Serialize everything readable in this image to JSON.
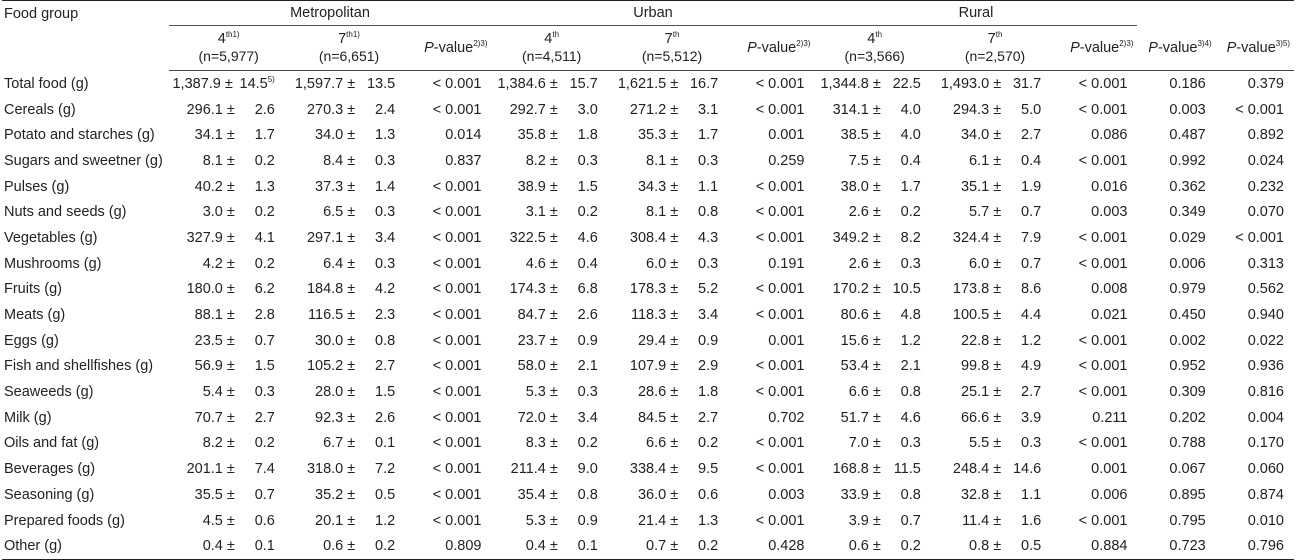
{
  "header": {
    "food_group": "Food group",
    "groups": [
      "Metropolitan",
      "Urban",
      "Rural"
    ],
    "sub": [
      {
        "grade": "4",
        "sup": "th1)",
        "n": "(n=5,977)"
      },
      {
        "grade": "7",
        "sup": "th1)",
        "n": "(n=6,651)"
      },
      {
        "grade": "4",
        "sup": "th",
        "n": "(n=4,511)"
      },
      {
        "grade": "7",
        "sup": "th",
        "n": "(n=5,512)"
      },
      {
        "grade": "4",
        "sup": "th",
        "n": "(n=3,566)"
      },
      {
        "grade": "7",
        "sup": "th",
        "n": "(n=2,570)"
      }
    ],
    "p_prefix": "P",
    "p_suffix": "-value",
    "p_sups": [
      "2)3)",
      "2)3)",
      "2)3)",
      "3)4)",
      "3)5)"
    ],
    "mean_sup": "5)"
  },
  "rows": [
    {
      "food": "Total food (g)",
      "m4": [
        "1,387.9 ±",
        "14.5"
      ],
      "m7": [
        "1,597.7 ±",
        "13.5"
      ],
      "mp": "< 0.001",
      "u4": [
        "1,384.6 ±",
        "15.7"
      ],
      "u7": [
        "1,621.5 ±",
        "16.7"
      ],
      "up": "< 0.001",
      "r4": [
        "1,344.8 ±",
        "22.5"
      ],
      "r7": [
        "1,493.0 ±",
        "31.7"
      ],
      "rp": "< 0.001",
      "p4": "0.186",
      "p5": "0.379"
    },
    {
      "food": "Cereals (g)",
      "m4": [
        "296.1 ±",
        "2.6"
      ],
      "m7": [
        "270.3 ±",
        "2.4"
      ],
      "mp": "< 0.001",
      "u4": [
        "292.7 ±",
        "3.0"
      ],
      "u7": [
        "271.2 ±",
        "3.1"
      ],
      "up": "< 0.001",
      "r4": [
        "314.1 ±",
        "4.0"
      ],
      "r7": [
        "294.3 ±",
        "5.0"
      ],
      "rp": "< 0.001",
      "p4": "0.003",
      "p5": "< 0.001"
    },
    {
      "food": "Potato and starches (g)",
      "m4": [
        "34.1 ±",
        "1.7"
      ],
      "m7": [
        "34.0 ±",
        "1.3"
      ],
      "mp": "0.014",
      "u4": [
        "35.8 ±",
        "1.8"
      ],
      "u7": [
        "35.3 ±",
        "1.7"
      ],
      "up": "0.001",
      "r4": [
        "38.5 ±",
        "4.0"
      ],
      "r7": [
        "34.0 ±",
        "2.7"
      ],
      "rp": "0.086",
      "p4": "0.487",
      "p5": "0.892"
    },
    {
      "food": "Sugars and sweetner (g)",
      "m4": [
        "8.1 ±",
        "0.2"
      ],
      "m7": [
        "8.4 ±",
        "0.3"
      ],
      "mp": "0.837",
      "u4": [
        "8.2 ±",
        "0.3"
      ],
      "u7": [
        "8.1 ±",
        "0.3"
      ],
      "up": "0.259",
      "r4": [
        "7.5 ±",
        "0.4"
      ],
      "r7": [
        "6.1 ±",
        "0.4"
      ],
      "rp": "< 0.001",
      "p4": "0.992",
      "p5": "0.024"
    },
    {
      "food": "Pulses (g)",
      "m4": [
        "40.2 ±",
        "1.3"
      ],
      "m7": [
        "37.3 ±",
        "1.4"
      ],
      "mp": "< 0.001",
      "u4": [
        "38.9 ±",
        "1.5"
      ],
      "u7": [
        "34.3 ±",
        "1.1"
      ],
      "up": "< 0.001",
      "r4": [
        "38.0 ±",
        "1.7"
      ],
      "r7": [
        "35.1 ±",
        "1.9"
      ],
      "rp": "0.016",
      "p4": "0.362",
      "p5": "0.232"
    },
    {
      "food": "Nuts and seeds (g)",
      "m4": [
        "3.0 ±",
        "0.2"
      ],
      "m7": [
        "6.5 ±",
        "0.3"
      ],
      "mp": "< 0.001",
      "u4": [
        "3.1 ±",
        "0.2"
      ],
      "u7": [
        "8.1 ±",
        "0.8"
      ],
      "up": "< 0.001",
      "r4": [
        "2.6 ±",
        "0.2"
      ],
      "r7": [
        "5.7 ±",
        "0.7"
      ],
      "rp": "0.003",
      "p4": "0.349",
      "p5": "0.070"
    },
    {
      "food": "Vegetables (g)",
      "m4": [
        "327.9 ±",
        "4.1"
      ],
      "m7": [
        "297.1 ±",
        "3.4"
      ],
      "mp": "< 0.001",
      "u4": [
        "322.5 ±",
        "4.6"
      ],
      "u7": [
        "308.4 ±",
        "4.3"
      ],
      "up": "< 0.001",
      "r4": [
        "349.2 ±",
        "8.2"
      ],
      "r7": [
        "324.4 ±",
        "7.9"
      ],
      "rp": "< 0.001",
      "p4": "0.029",
      "p5": "< 0.001"
    },
    {
      "food": "Mushrooms (g)",
      "m4": [
        "4.2 ±",
        "0.2"
      ],
      "m7": [
        "6.4 ±",
        "0.3"
      ],
      "mp": "< 0.001",
      "u4": [
        "4.6 ±",
        "0.4"
      ],
      "u7": [
        "6.0 ±",
        "0.3"
      ],
      "up": "0.191",
      "r4": [
        "2.6 ±",
        "0.3"
      ],
      "r7": [
        "6.0 ±",
        "0.7"
      ],
      "rp": "< 0.001",
      "p4": "0.006",
      "p5": "0.313"
    },
    {
      "food": "Fruits (g)",
      "m4": [
        "180.0 ±",
        "6.2"
      ],
      "m7": [
        "184.8 ±",
        "4.2"
      ],
      "mp": "< 0.001",
      "u4": [
        "174.3 ±",
        "6.8"
      ],
      "u7": [
        "178.3 ±",
        "5.2"
      ],
      "up": "< 0.001",
      "r4": [
        "170.2 ±",
        "10.5"
      ],
      "r7": [
        "173.8 ±",
        "8.6"
      ],
      "rp": "0.008",
      "p4": "0.979",
      "p5": "0.562"
    },
    {
      "food": "Meats (g)",
      "m4": [
        "88.1 ±",
        "2.8"
      ],
      "m7": [
        "116.5 ±",
        "2.3"
      ],
      "mp": "< 0.001",
      "u4": [
        "84.7 ±",
        "2.6"
      ],
      "u7": [
        "118.3 ±",
        "3.4"
      ],
      "up": "< 0.001",
      "r4": [
        "80.6 ±",
        "4.8"
      ],
      "r7": [
        "100.5 ±",
        "4.4"
      ],
      "rp": "0.021",
      "p4": "0.450",
      "p5": "0.940"
    },
    {
      "food": "Eggs (g)",
      "m4": [
        "23.5 ±",
        "0.7"
      ],
      "m7": [
        "30.0 ±",
        "0.8"
      ],
      "mp": "< 0.001",
      "u4": [
        "23.7 ±",
        "0.9"
      ],
      "u7": [
        "29.4 ±",
        "0.9"
      ],
      "up": "0.001",
      "r4": [
        "15.6 ±",
        "1.2"
      ],
      "r7": [
        "22.8 ±",
        "1.2"
      ],
      "rp": "< 0.001",
      "p4": "0.002",
      "p5": "0.022"
    },
    {
      "food": "Fish and shellfishes (g)",
      "m4": [
        "56.9 ±",
        "1.5"
      ],
      "m7": [
        "105.2 ±",
        "2.7"
      ],
      "mp": "< 0.001",
      "u4": [
        "58.0 ±",
        "2.1"
      ],
      "u7": [
        "107.9 ±",
        "2.9"
      ],
      "up": "< 0.001",
      "r4": [
        "53.4 ±",
        "2.1"
      ],
      "r7": [
        "99.8 ±",
        "4.9"
      ],
      "rp": "< 0.001",
      "p4": "0.952",
      "p5": "0.936"
    },
    {
      "food": "Seaweeds (g)",
      "m4": [
        "5.4 ±",
        "0.3"
      ],
      "m7": [
        "28.0 ±",
        "1.5"
      ],
      "mp": "< 0.001",
      "u4": [
        "5.3 ±",
        "0.3"
      ],
      "u7": [
        "28.6 ±",
        "1.8"
      ],
      "up": "< 0.001",
      "r4": [
        "6.6 ±",
        "0.8"
      ],
      "r7": [
        "25.1 ±",
        "2.7"
      ],
      "rp": "< 0.001",
      "p4": "0.309",
      "p5": "0.816"
    },
    {
      "food": "Milk (g)",
      "m4": [
        "70.7 ±",
        "2.7"
      ],
      "m7": [
        "92.3 ±",
        "2.6"
      ],
      "mp": "< 0.001",
      "u4": [
        "72.0 ±",
        "3.4"
      ],
      "u7": [
        "84.5 ±",
        "2.7"
      ],
      "up": "0.702",
      "r4": [
        "51.7 ±",
        "4.6"
      ],
      "r7": [
        "66.6 ±",
        "3.9"
      ],
      "rp": "0.211",
      "p4": "0.202",
      "p5": "0.004"
    },
    {
      "food": "Oils and fat (g)",
      "m4": [
        "8.2 ±",
        "0.2"
      ],
      "m7": [
        "6.7 ±",
        "0.1"
      ],
      "mp": "< 0.001",
      "u4": [
        "8.3 ±",
        "0.2"
      ],
      "u7": [
        "6.6 ±",
        "0.2"
      ],
      "up": "< 0.001",
      "r4": [
        "7.0 ±",
        "0.3"
      ],
      "r7": [
        "5.5 ±",
        "0.3"
      ],
      "rp": "< 0.001",
      "p4": "0.788",
      "p5": "0.170"
    },
    {
      "food": "Beverages (g)",
      "m4": [
        "201.1 ±",
        "7.4"
      ],
      "m7": [
        "318.0 ±",
        "7.2"
      ],
      "mp": "< 0.001",
      "u4": [
        "211.4 ±",
        "9.0"
      ],
      "u7": [
        "338.4 ±",
        "9.5"
      ],
      "up": "< 0.001",
      "r4": [
        "168.8 ±",
        "11.5"
      ],
      "r7": [
        "248.4 ±",
        "14.6"
      ],
      "rp": "0.001",
      "p4": "0.067",
      "p5": "0.060"
    },
    {
      "food": "Seasoning (g)",
      "m4": [
        "35.5 ±",
        "0.7"
      ],
      "m7": [
        "35.2 ±",
        "0.5"
      ],
      "mp": "< 0.001",
      "u4": [
        "35.4 ±",
        "0.8"
      ],
      "u7": [
        "36.0 ±",
        "0.6"
      ],
      "up": "0.003",
      "r4": [
        "33.9 ±",
        "0.8"
      ],
      "r7": [
        "32.8 ±",
        "1.1"
      ],
      "rp": "0.006",
      "p4": "0.895",
      "p5": "0.874"
    },
    {
      "food": "Prepared foods (g)",
      "m4": [
        "4.5 ±",
        "0.6"
      ],
      "m7": [
        "20.1 ±",
        "1.2"
      ],
      "mp": "< 0.001",
      "u4": [
        "5.3 ±",
        "0.9"
      ],
      "u7": [
        "21.4 ±",
        "1.3"
      ],
      "up": "< 0.001",
      "r4": [
        "3.9 ±",
        "0.7"
      ],
      "r7": [
        "11.4 ±",
        "1.6"
      ],
      "rp": "< 0.001",
      "p4": "0.795",
      "p5": "0.010"
    },
    {
      "food": "Other (g)",
      "m4": [
        "0.4 ±",
        "0.1"
      ],
      "m7": [
        "0.6 ±",
        "0.2"
      ],
      "mp": "0.809",
      "u4": [
        "0.4 ±",
        "0.1"
      ],
      "u7": [
        "0.7 ±",
        "0.2"
      ],
      "up": "0.428",
      "r4": [
        "0.6 ±",
        "0.2"
      ],
      "r7": [
        "0.8 ±",
        "0.5"
      ],
      "rp": "0.884",
      "p4": "0.723",
      "p5": "0.796"
    }
  ]
}
